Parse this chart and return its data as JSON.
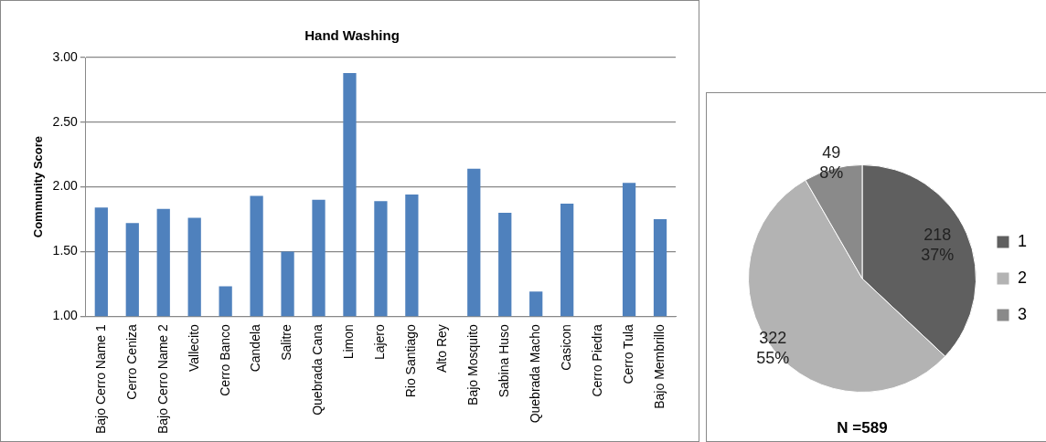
{
  "chart_data": [
    {
      "type": "bar",
      "title": "Hand Washing",
      "ylabel": "Community Score",
      "categories": [
        "Bajo Cerro Name 1",
        "Cerro Ceniza",
        "Bajo Cerro Name 2",
        "Vallecito",
        "Cerro Banco",
        "Candela",
        "Salitre",
        "Quebrada Cana",
        "Limon",
        "Lajero",
        "Rio Santiago",
        "Alto Rey",
        "Bajo Mosquito",
        "Sabina Huso",
        "Quebrada Macho",
        "Casicon",
        "Cerro Piedra",
        "Cerro Tula",
        "Bajo Membrillo"
      ],
      "values": [
        1.84,
        1.72,
        1.83,
        1.76,
        1.23,
        1.93,
        1.5,
        1.9,
        2.88,
        1.89,
        1.94,
        null,
        2.14,
        1.8,
        1.19,
        1.87,
        null,
        2.03,
        1.75
      ],
      "color": "#4f81bd",
      "ylim": [
        1,
        3
      ],
      "yticks": [
        {
          "value": 1,
          "label": "1.00"
        },
        {
          "value": 1.5,
          "label": "1.50"
        },
        {
          "value": 2,
          "label": "2.00"
        },
        {
          "value": 2.5,
          "label": "2.50"
        },
        {
          "value": 3,
          "label": "3.00"
        }
      ],
      "grid": "y",
      "legend": false
    },
    {
      "type": "pie",
      "title": "N =589",
      "categories": [
        "1",
        "2",
        "3"
      ],
      "values": [
        218,
        322,
        49
      ],
      "colors": [
        "#5f5f5f",
        "#b3b3b3",
        "#8a8a8a"
      ],
      "value_labels": [
        "218\n37%",
        "322\n55%",
        "49\n8%"
      ],
      "legend": "right"
    }
  ]
}
